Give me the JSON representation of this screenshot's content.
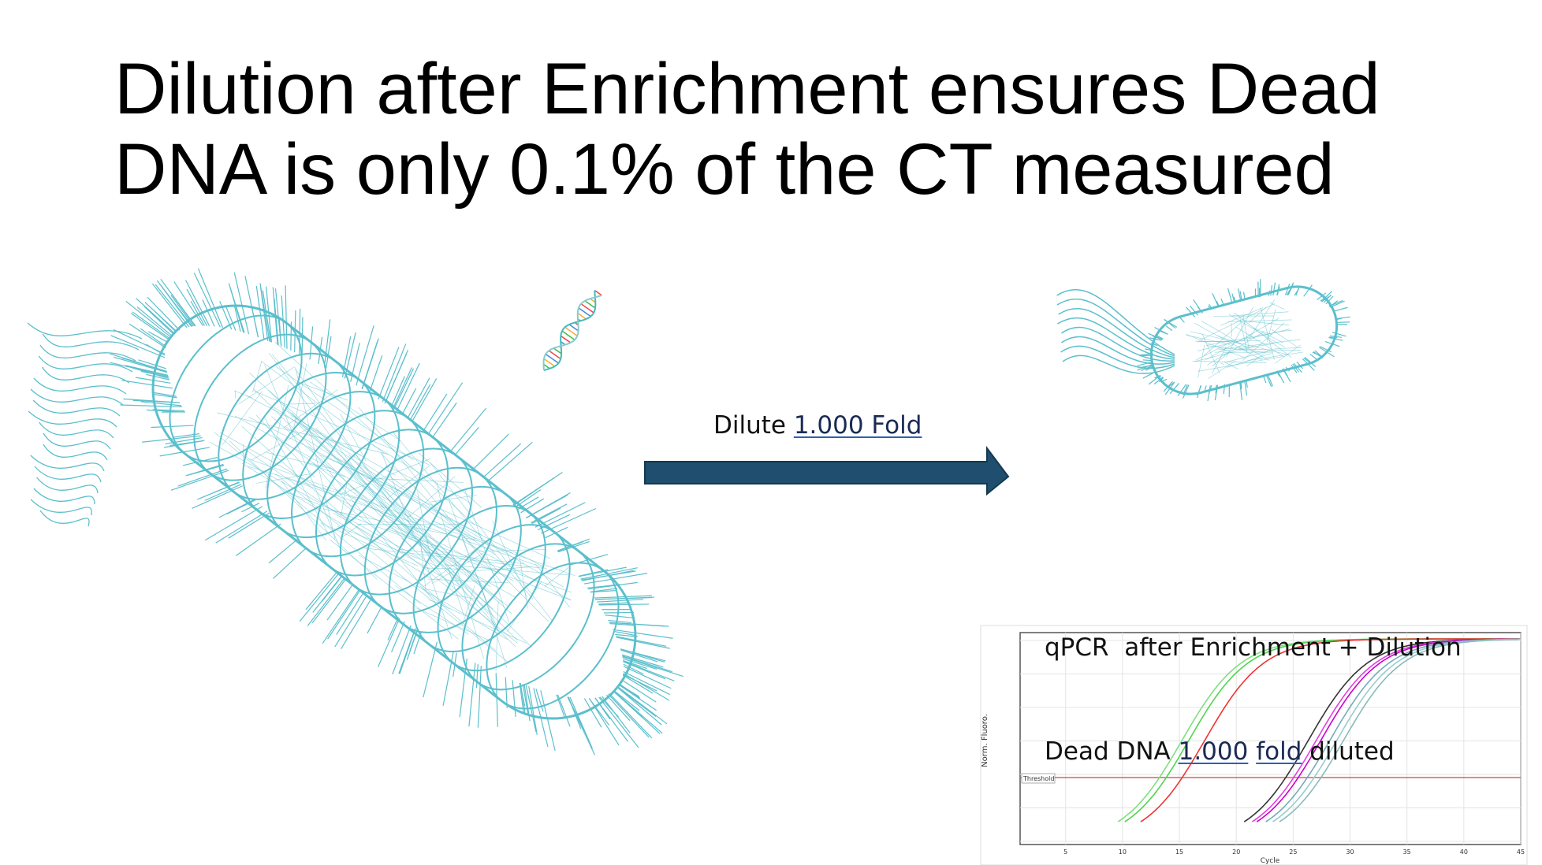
{
  "title": {
    "line1": "Dilution after Enrichment ensures Dead",
    "line2": "DNA is only 0.1% of the CT measured"
  },
  "arrow_label": {
    "text": "Dilute ",
    "link": "1.000 Fold"
  },
  "qpcr": {
    "caption_line1": "qPCR  after Enrichment + Dilution",
    "caption_line2": {
      "text": "Dead DNA ",
      "link1": "1.000",
      "space": " ",
      "link2": "fold",
      "tail": " diluted"
    },
    "x_label": "Cycle",
    "y_label": "Norm. Fluoro.",
    "threshold_label": "Threshold",
    "xlim": [
      1,
      45
    ],
    "x_ticks": [
      5,
      10,
      15,
      20,
      25,
      30,
      35,
      40,
      45
    ]
  }
}
